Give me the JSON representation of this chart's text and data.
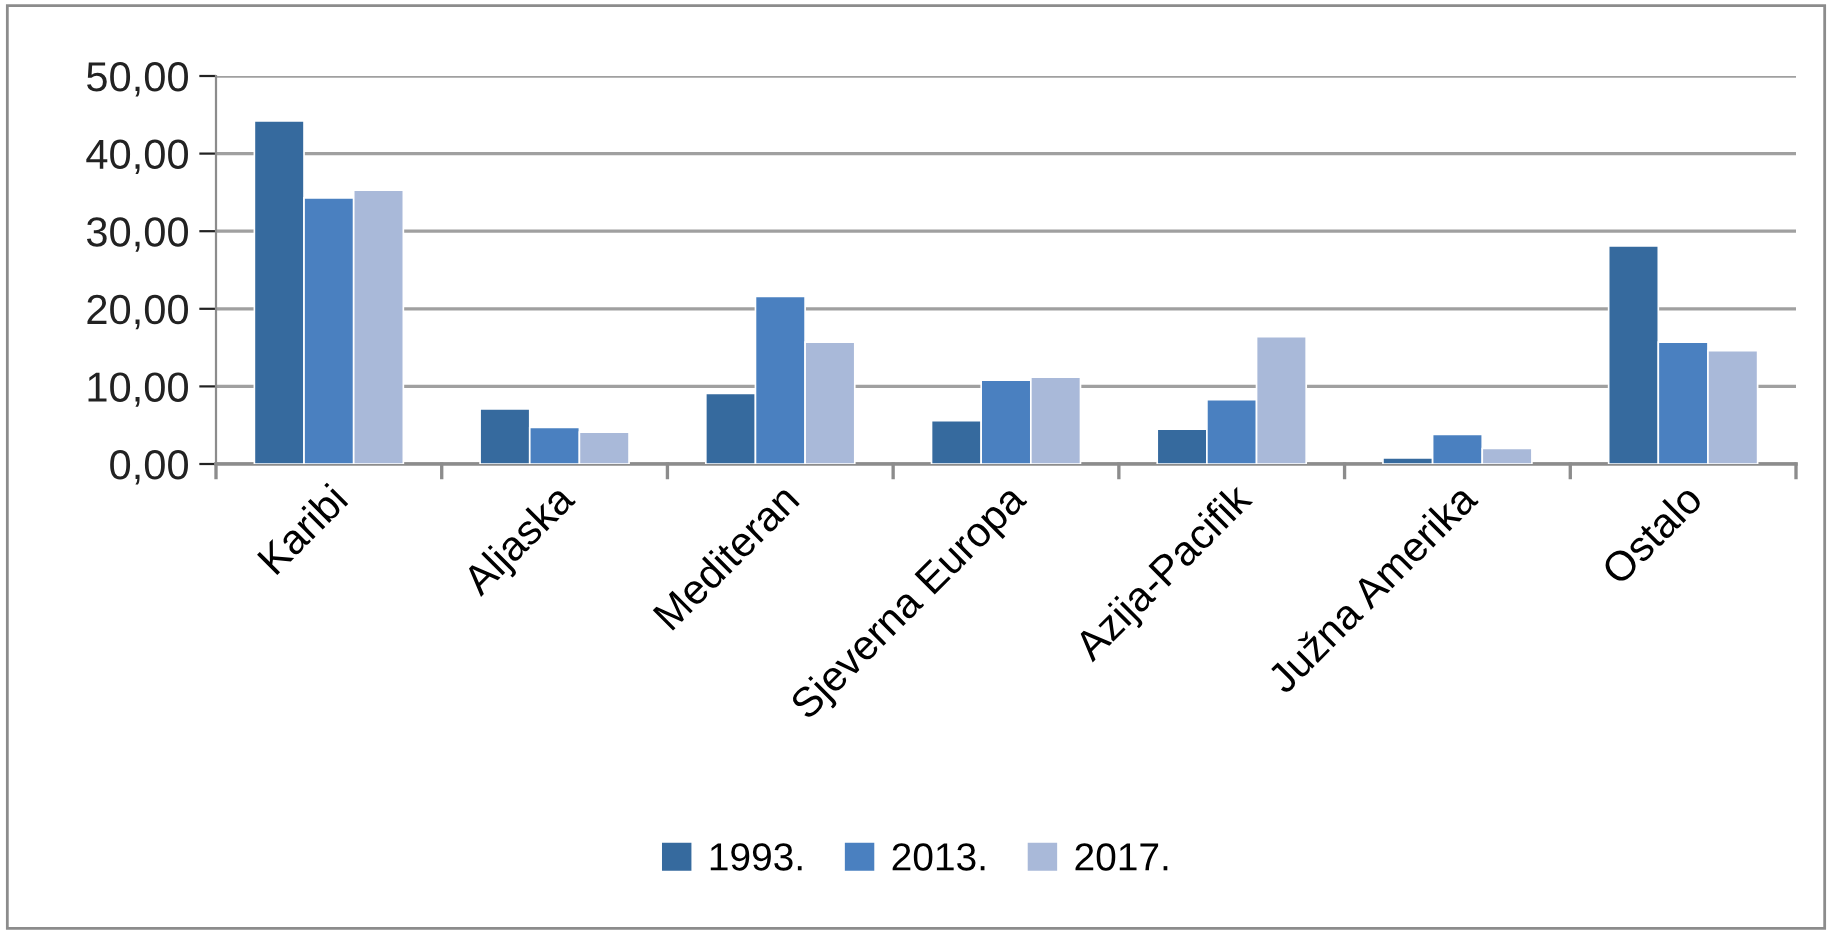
{
  "chart_data": {
    "type": "bar",
    "categories": [
      "Karibi",
      "Aljaska",
      "Mediteran",
      "Sjeverna Europa",
      "Azija-Pacifik",
      "Južna Amerika",
      "Ostalo"
    ],
    "series": [
      {
        "name": "1993.",
        "color": "#366a9e",
        "values": [
          44.2,
          7.1,
          9.1,
          5.6,
          4.5,
          0.8,
          28.1
        ]
      },
      {
        "name": "2013.",
        "color": "#4a80c0",
        "values": [
          34.3,
          4.7,
          21.6,
          10.8,
          8.3,
          3.8,
          15.7
        ]
      },
      {
        "name": "2017.",
        "color": "#a9b9d9",
        "values": [
          35.3,
          4.1,
          15.7,
          11.2,
          16.4,
          2.0,
          14.6
        ]
      }
    ],
    "ylim": [
      0,
      50
    ],
    "yticks": [
      {
        "value": 0,
        "label": "0,00"
      },
      {
        "value": 10,
        "label": "10,00"
      },
      {
        "value": 20,
        "label": "20,00"
      },
      {
        "value": 30,
        "label": "30,00"
      },
      {
        "value": 40,
        "label": "40,00"
      },
      {
        "value": 50,
        "label": "50,00"
      }
    ],
    "grid": "y",
    "legend": "bottom"
  }
}
